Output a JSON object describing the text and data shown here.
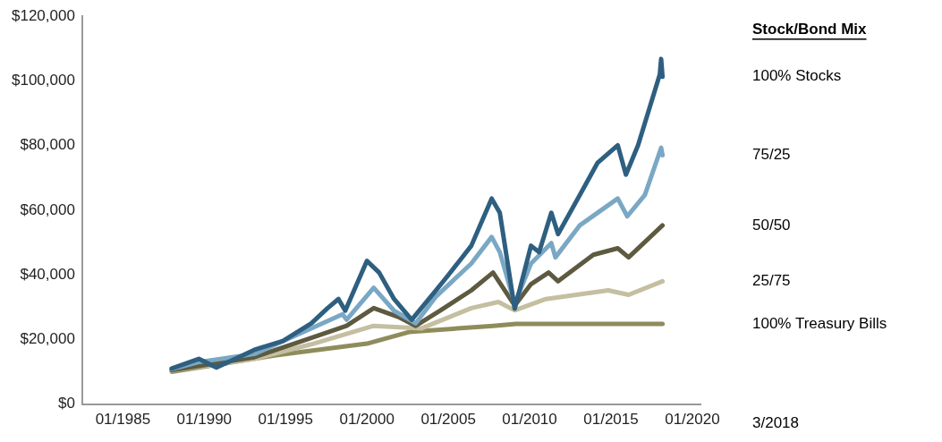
{
  "chart_data": {
    "type": "line",
    "legend_title": "Stock/Bond Mix",
    "legend": "right",
    "grid": false,
    "marker": "none",
    "line_style": "solid",
    "xlim": [
      "1982-07",
      "2020-07"
    ],
    "xticks": [
      {
        "value": "1985-01",
        "label": "01/1985"
      },
      {
        "value": "1990-01",
        "label": "01/1990"
      },
      {
        "value": "1995-01",
        "label": "01/1995"
      },
      {
        "value": "2000-01",
        "label": "01/2000"
      },
      {
        "value": "2005-01",
        "label": "01/2005"
      },
      {
        "value": "2010-01",
        "label": "01/2010"
      },
      {
        "value": "2015-01",
        "label": "01/2015"
      },
      {
        "value": "2020-01",
        "label": "01/2020"
      }
    ],
    "ylim": [
      0,
      120000
    ],
    "yticks": [
      {
        "value": 0,
        "label": "$0"
      },
      {
        "value": 20000,
        "label": "$20,000"
      },
      {
        "value": 40000,
        "label": "$40,000"
      },
      {
        "value": 60000,
        "label": "$60,000"
      },
      {
        "value": 80000,
        "label": "$80,000"
      },
      {
        "value": 100000,
        "label": "$100,000"
      },
      {
        "value": 120000,
        "label": "$120,000"
      }
    ],
    "annotations": [
      "3/2018"
    ],
    "series": [
      {
        "name": "100% Stocks",
        "color": "#2e5f80",
        "x": [
          "1988-01",
          "1989-09",
          "1990-10",
          "1993-02",
          "1994-11",
          "1996-08",
          "1997-08",
          "1998-04",
          "1998-09",
          "2000-01",
          "2000-10",
          "2001-09",
          "2002-10",
          "2004-04",
          "2005-01",
          "2006-06",
          "2007-09",
          "2008-03",
          "2009-02",
          "2010-02",
          "2010-08",
          "2011-05",
          "2011-10",
          "2013-02",
          "2014-03",
          "2015-06",
          "2015-12",
          "2016-09",
          "2018-01",
          "2018-02",
          "2018-03"
        ],
        "values": [
          11000,
          14000,
          11300,
          16800,
          19500,
          25000,
          29700,
          32500,
          28900,
          44300,
          40700,
          32500,
          26100,
          35200,
          39900,
          49000,
          63600,
          59200,
          29500,
          49000,
          47000,
          59200,
          52600,
          64700,
          74600,
          80100,
          71000,
          80100,
          102000,
          106800,
          101300
        ]
      },
      {
        "name": "75/25",
        "color": "#7aa8c4",
        "x": [
          "1988-01",
          "1989-09",
          "1993-02",
          "1996-08",
          "1998-07",
          "1998-10",
          "2000-06",
          "2001-09",
          "2003-01",
          "2004-04",
          "2006-06",
          "2007-09",
          "2008-03",
          "2009-02",
          "2010-02",
          "2011-05",
          "2011-08",
          "2013-02",
          "2015-06",
          "2016-01",
          "2017-02",
          "2018-02",
          "2018-03"
        ],
        "values": [
          10800,
          13000,
          15500,
          23400,
          27800,
          26100,
          36000,
          28900,
          25000,
          33300,
          43500,
          51700,
          47000,
          31000,
          43500,
          49800,
          45400,
          55300,
          63600,
          58100,
          64700,
          79300,
          77000
        ]
      },
      {
        "name": "50/50",
        "color": "#5e5a40",
        "x": [
          "1988-01",
          "1993-02",
          "1996-08",
          "1998-10",
          "2000-06",
          "2001-12",
          "2003-01",
          "2004-07",
          "2006-06",
          "2007-10",
          "2009-02",
          "2010-02",
          "2011-03",
          "2011-10",
          "2013-12",
          "2015-06",
          "2016-02",
          "2018-03"
        ],
        "values": [
          10500,
          14500,
          20500,
          24200,
          29700,
          27000,
          24200,
          28900,
          35200,
          40700,
          30500,
          37100,
          40700,
          38000,
          46200,
          48200,
          45400,
          55300
        ]
      },
      {
        "name": "25/75",
        "color": "#c4bfa0",
        "x": [
          "1988-01",
          "1993-02",
          "1996-08",
          "2000-06",
          "2003-05",
          "2006-06",
          "2008-02",
          "2009-02",
          "2011-01",
          "2014-11",
          "2016-02",
          "2018-03"
        ],
        "values": [
          10300,
          14000,
          18500,
          24200,
          23400,
          29700,
          31600,
          29000,
          32500,
          35200,
          33800,
          38000
        ]
      },
      {
        "name": "100% Treasury Bills",
        "color": "#8f8c5c",
        "x": [
          "1988-01",
          "1994-06",
          "2000-01",
          "2002-08",
          "2007-10",
          "2009-03",
          "2018-03"
        ],
        "values": [
          10000,
          15100,
          18700,
          22300,
          24200,
          24800,
          24800
        ]
      }
    ]
  }
}
